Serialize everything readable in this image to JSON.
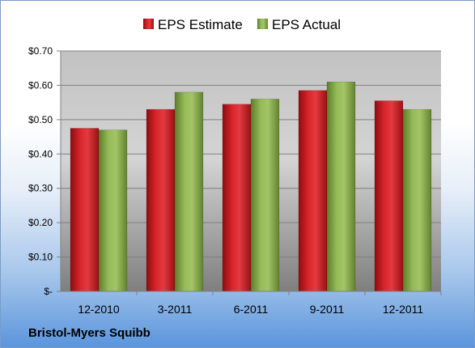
{
  "company": "Bristol-Myers Squibb",
  "colors": {
    "estimate": "#c8141c",
    "actual": "#8cb04c"
  },
  "chart_data": {
    "type": "bar",
    "categories": [
      "12-2010",
      "3-2011",
      "6-2011",
      "9-2011",
      "12-2011"
    ],
    "series": [
      {
        "name": "EPS Estimate",
        "values": [
          0.475,
          0.53,
          0.545,
          0.585,
          0.555
        ]
      },
      {
        "name": "EPS Actual",
        "values": [
          0.47,
          0.58,
          0.56,
          0.61,
          0.53
        ]
      }
    ],
    "ylim": [
      0,
      0.7
    ],
    "yticks": [
      0,
      0.1,
      0.2,
      0.3,
      0.4,
      0.5,
      0.6,
      0.7
    ],
    "ytick_labels": [
      "$-",
      "$0.10",
      "$0.20",
      "$0.30",
      "$0.40",
      "$0.50",
      "$0.60",
      "$0.70"
    ],
    "legend_position": "top",
    "grid": true
  }
}
